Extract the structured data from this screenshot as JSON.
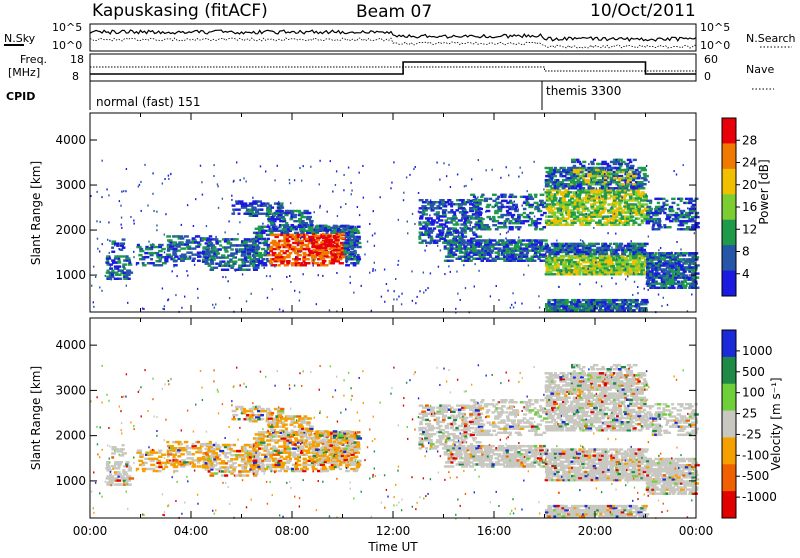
{
  "header": {
    "station": "Kapuskasing (fitACF)",
    "beam": "Beam 07",
    "date": "10/Oct/2011"
  },
  "top_panel": {
    "left_label": "N.Sky",
    "right_label": "N.Search",
    "left_ticks": [
      "10^5",
      "10^0"
    ],
    "right_ticks": [
      "10^5",
      "10^0"
    ]
  },
  "freq_panel": {
    "left_label_line1": "Freq.",
    "left_label_line2": "[MHz]",
    "right_label": "Nave",
    "left_ticks": [
      "18",
      "8"
    ],
    "right_ticks": [
      "60",
      "0"
    ]
  },
  "cpid_panel": {
    "label": "CPID",
    "modes": [
      "normal (fast) 151",
      "themis 3300"
    ]
  },
  "chart_data": [
    {
      "type": "heatmap",
      "title": "",
      "xlabel": "",
      "ylabel": "Slant Range [km]",
      "x_range_hours": [
        0,
        24
      ],
      "ylim_km": [
        180,
        4600
      ],
      "yticks": [
        "1000",
        "2000",
        "3000",
        "4000"
      ],
      "colorbar": {
        "label": "Power [dB]",
        "ticks": [
          "28",
          "24",
          "20",
          "16",
          "12",
          "8",
          "4"
        ],
        "colors": [
          "#e8000b",
          "#f07a00",
          "#f0c000",
          "#7ccd32",
          "#1e9a4a",
          "#2656a8",
          "#1a1ae0"
        ]
      }
    },
    {
      "type": "heatmap",
      "title": "",
      "xlabel": "Time UT",
      "ylabel": "Slant Range [km]",
      "x_range_hours": [
        0,
        24
      ],
      "ylim_km": [
        180,
        4600
      ],
      "xticks": [
        "00:00",
        "04:00",
        "08:00",
        "12:00",
        "16:00",
        "20:00",
        "00:00"
      ],
      "yticks": [
        "1000",
        "2000",
        "3000",
        "4000"
      ],
      "colorbar": {
        "label": "Velocity [m s⁻¹]",
        "ticks": [
          "1000",
          "500",
          "100",
          "25",
          "-25",
          "-100",
          "-500",
          "-1000"
        ],
        "colors": [
          "#1a2ad8",
          "#1e8a46",
          "#6fcf3a",
          "#c8c8c0",
          "#f5a000",
          "#f06000",
          "#e00000"
        ]
      }
    }
  ]
}
